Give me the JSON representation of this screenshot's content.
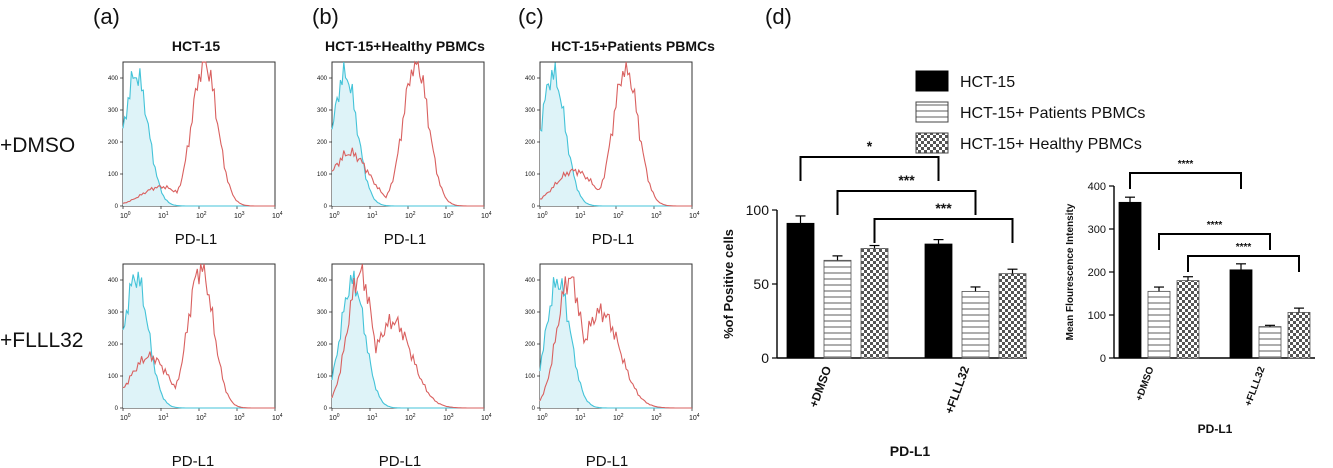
{
  "panel_letters": [
    "(a)",
    "(b)",
    "(c)",
    "(d)"
  ],
  "column_titles": [
    "HCT-15",
    "HCT-15+Healthy PBMCs",
    "HCT-15+Patients PBMCs"
  ],
  "row_labels": [
    "+DMSO",
    "+FLLL32"
  ],
  "flow_axis_label": "PD-L1",
  "flow_y_ticks": [
    "400",
    "300",
    "200",
    "100",
    "0"
  ],
  "flow_x_ticks": [
    {
      "base": "10",
      "exp": "0"
    },
    {
      "base": "10",
      "exp": "1"
    },
    {
      "base": "10",
      "exp": "2"
    },
    {
      "base": "10",
      "exp": "3"
    },
    {
      "base": "10",
      "exp": "4"
    }
  ],
  "colors": {
    "control_line": "#43c3d8",
    "control_fill": "#def3f8",
    "pdl1_line": "#d9605f",
    "hct15_bar": "#000000",
    "bracket": "#000000"
  },
  "legend": [
    {
      "label": "HCT-15",
      "pattern": "solid"
    },
    {
      "label": "HCT-15+ Patients PBMCs",
      "pattern": "horizontal-lines"
    },
    {
      "label": "HCT-15+ Healthy PBMCs",
      "pattern": "checkerboard"
    }
  ],
  "chart_data": [
    {
      "type": "bar",
      "panel": "(d) left",
      "categories": [
        "+DMSO",
        "+FLLL32"
      ],
      "series": [
        {
          "name": "HCT-15",
          "values": [
            91,
            77
          ],
          "errors": [
            5,
            3
          ]
        },
        {
          "name": "HCT-15+ Patients PBMCs",
          "values": [
            66,
            45
          ],
          "errors": [
            3,
            3
          ]
        },
        {
          "name": "HCT-15+ Healthy PBMCs",
          "values": [
            74,
            57
          ],
          "errors": [
            2,
            3
          ]
        }
      ],
      "ylabel": "%of Positive cells",
      "xlabel": "PD-L1",
      "ylim": [
        0,
        100
      ],
      "yticks": [
        0,
        50,
        100
      ],
      "significance": [
        {
          "label": "*",
          "from": "+DMSO / HCT-15",
          "to": "+FLLL32 / HCT-15"
        },
        {
          "label": "***",
          "from": "+DMSO / HCT-15+ Patients PBMCs",
          "to": "+FLLL32 / HCT-15+ Patients PBMCs"
        },
        {
          "label": "***",
          "from": "+DMSO / HCT-15+ Healthy PBMCs",
          "to": "+FLLL32 / HCT-15+ Healthy PBMCs"
        }
      ]
    },
    {
      "type": "bar",
      "panel": "(d) right",
      "categories": [
        "+DMSO",
        "+FLLL32"
      ],
      "series": [
        {
          "name": "HCT-15",
          "values": [
            362,
            205
          ],
          "errors": [
            12,
            14
          ]
        },
        {
          "name": "HCT-15+ Patients PBMCs",
          "values": [
            155,
            73
          ],
          "errors": [
            10,
            3
          ]
        },
        {
          "name": "HCT-15+ Healthy PBMCs",
          "values": [
            180,
            106
          ],
          "errors": [
            9,
            10
          ]
        }
      ],
      "ylabel": "Mean Flourescence Intensity",
      "xlabel": "PD-L1",
      "ylim": [
        0,
        400
      ],
      "yticks": [
        0,
        100,
        200,
        300,
        400
      ],
      "significance": [
        {
          "label": "****",
          "from": "+DMSO / HCT-15",
          "to": "+FLLL32 / HCT-15"
        },
        {
          "label": "****",
          "from": "+DMSO / HCT-15+ Patients PBMCs",
          "to": "+FLLL32 / HCT-15+ Patients PBMCs"
        },
        {
          "label": "****",
          "from": "+DMSO / HCT-15+ Healthy PBMCs",
          "to": "+FLLL32 / HCT-15+ Healthy PBMCs"
        }
      ]
    },
    {
      "type": "line",
      "panel": "(a)-(c) flow cytometry histograms",
      "x_scale": "log",
      "x_range": [
        1,
        10000
      ],
      "y_range": [
        0,
        450
      ],
      "xlabel": "PD-L1",
      "histograms": [
        {
          "condition": "HCT-15 +DMSO",
          "control_peak": [
            2.2,
            410
          ],
          "pdl1_peak": [
            140,
            450
          ],
          "pdl1_shoulder": [
            10,
            60
          ]
        },
        {
          "condition": "HCT-15+Healthy PBMCs +DMSO",
          "control_peak": [
            2.2,
            410
          ],
          "pdl1_peak": [
            160,
            450
          ],
          "pdl1_shoulder": [
            3,
            165
          ]
        },
        {
          "condition": "HCT-15+Patients PBMCs +DMSO",
          "control_peak": [
            2.2,
            410
          ],
          "pdl1_peak": [
            180,
            430
          ],
          "pdl1_shoulder": [
            8,
            110
          ]
        },
        {
          "condition": "HCT-15 +FLLL32",
          "control_peak": [
            2.2,
            410
          ],
          "pdl1_peak": [
            110,
            440
          ],
          "pdl1_shoulder": [
            5,
            160
          ]
        },
        {
          "condition": "HCT-15+Healthy PBMCs +FLLL32",
          "control_peak": [
            3.5,
            395
          ],
          "pdl1_peak": [
            5.5,
            420
          ],
          "pdl1_shoulder": [
            40,
            270
          ]
        },
        {
          "condition": "HCT-15+Patients PBMCs +FLLL32",
          "control_peak": [
            3,
            395
          ],
          "pdl1_peak": [
            6,
            405
          ],
          "pdl1_shoulder": [
            40,
            300
          ]
        }
      ]
    }
  ]
}
